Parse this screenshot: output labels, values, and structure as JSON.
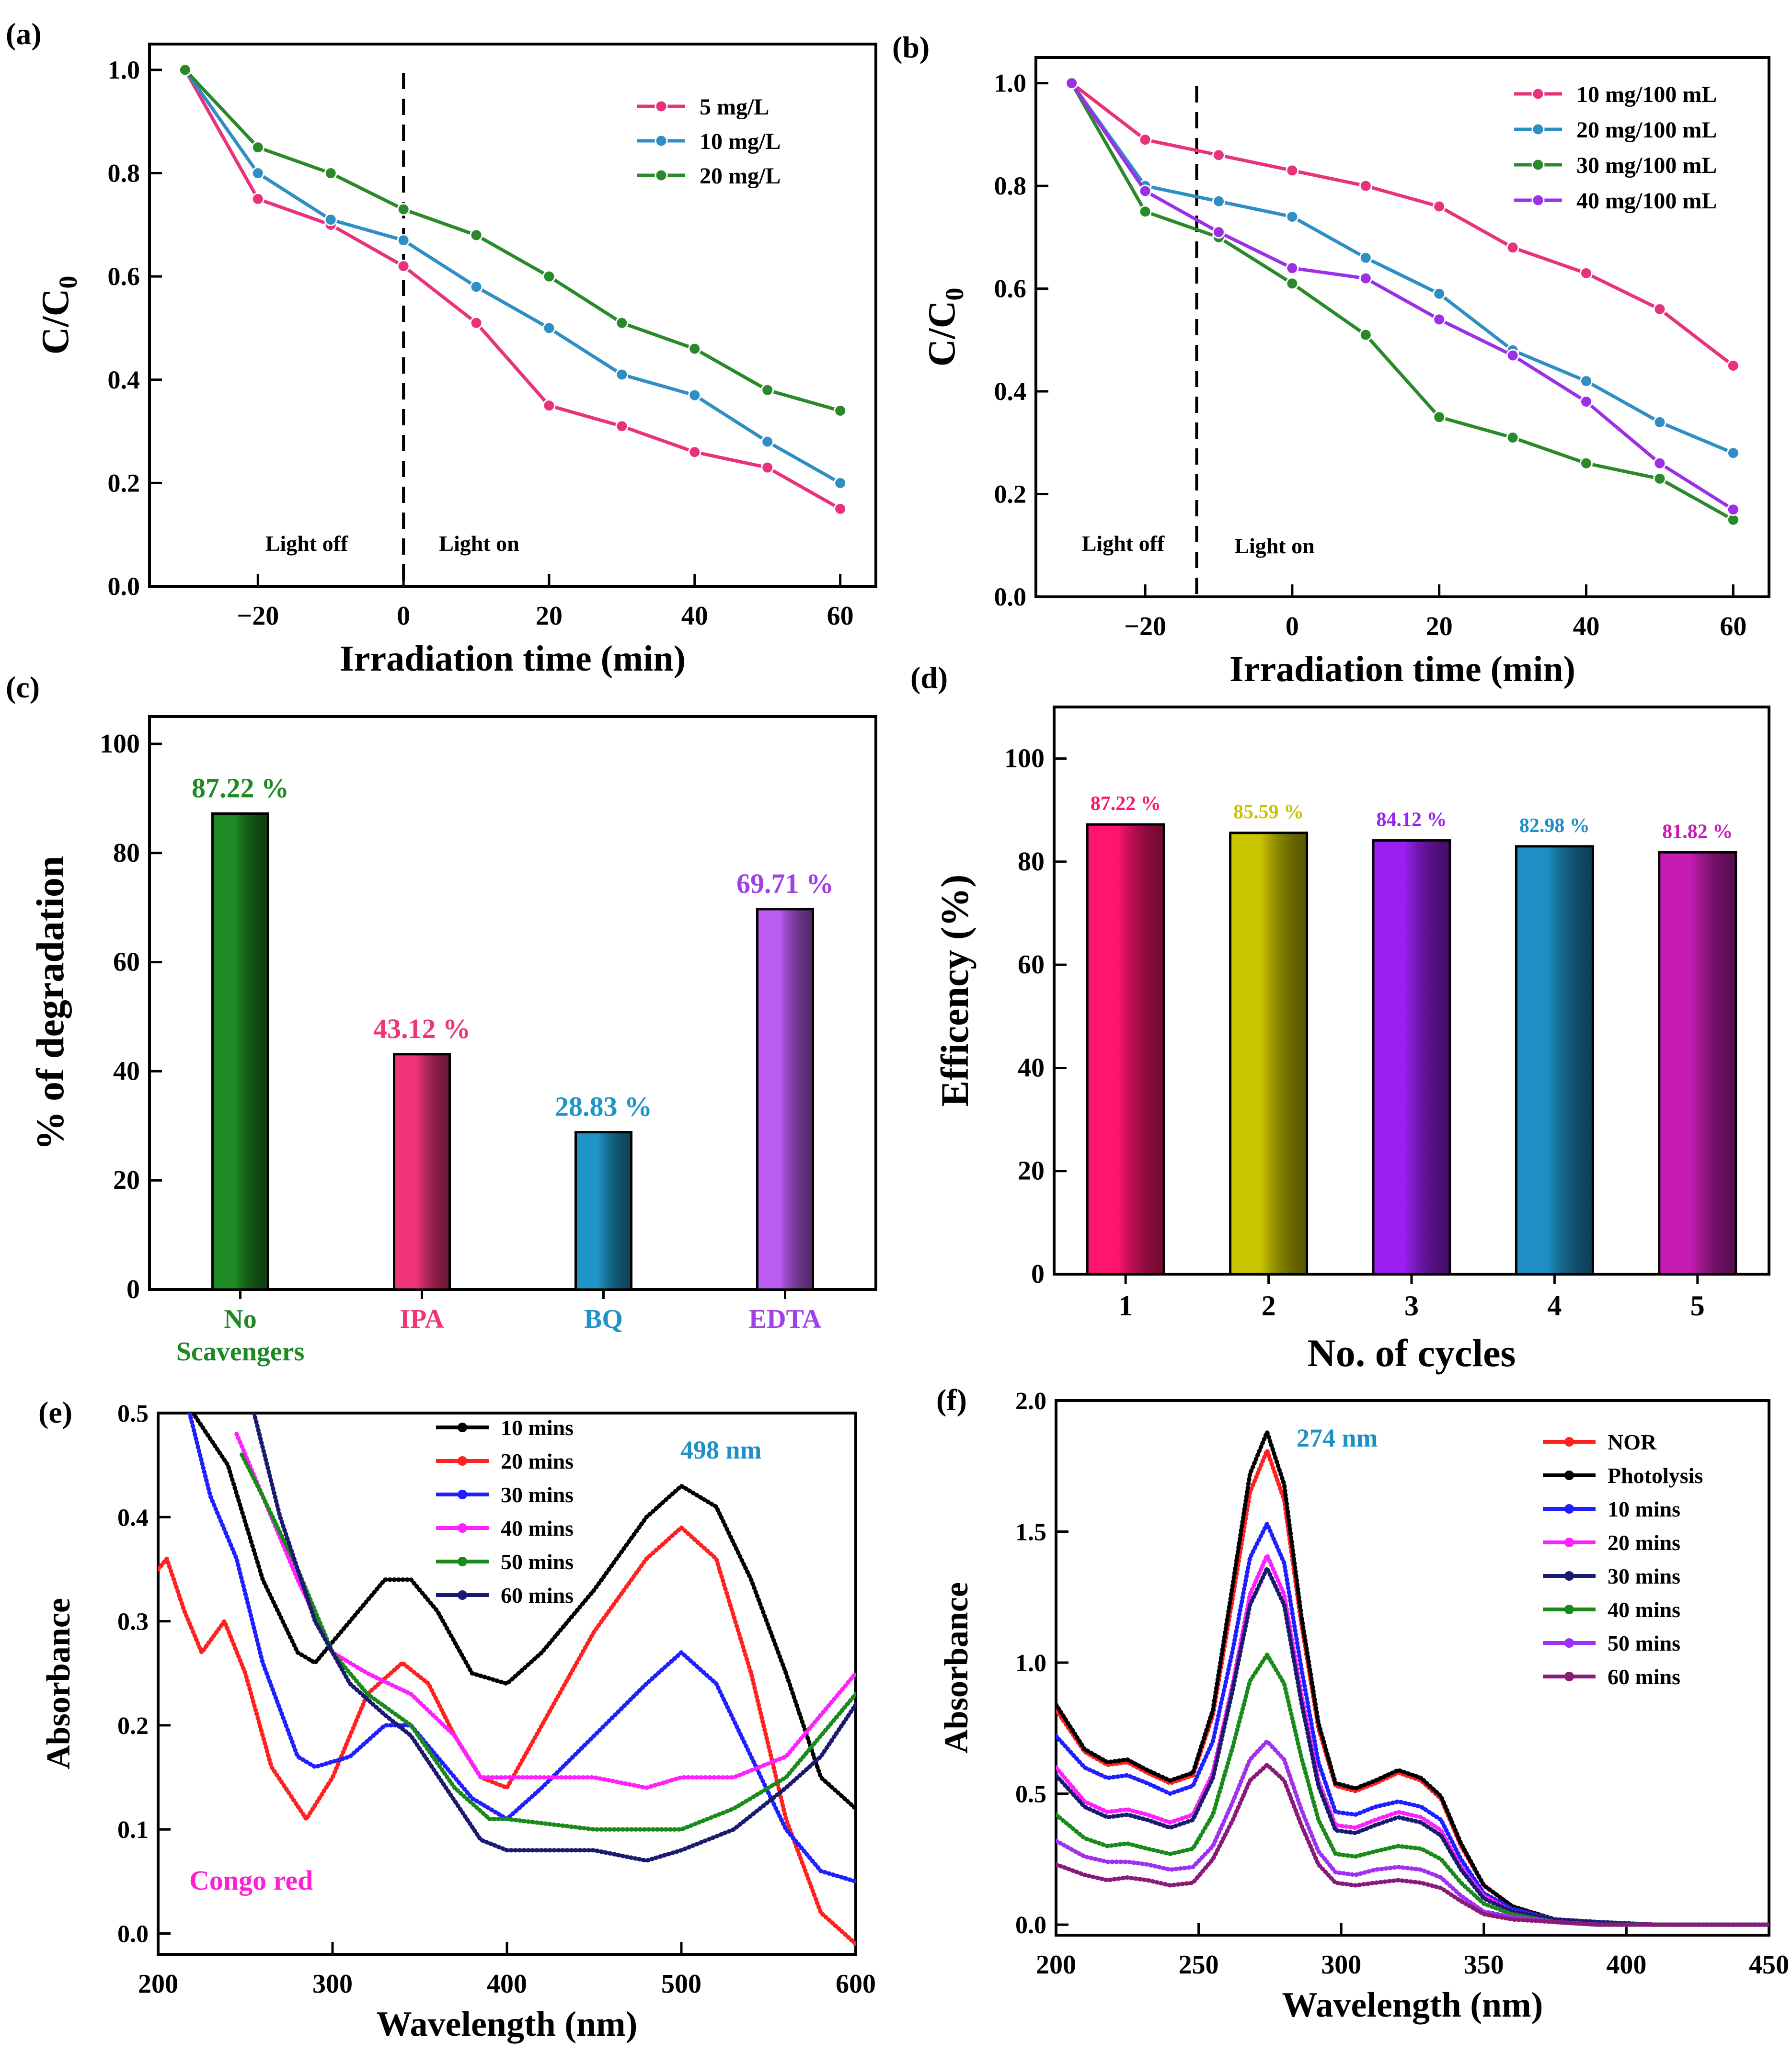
{
  "chart_data": [
    {
      "panel_label": "(a)",
      "type": "line",
      "xlabel": "Irradiation time (min)",
      "ylabel_main": "C/C",
      "ylabel_sub": "0",
      "xlim": [
        -32,
        62
      ],
      "ylim": [
        0,
        1.05
      ],
      "xticks": [
        -20,
        0,
        20,
        40,
        60
      ],
      "xtick_labels": [
        "−20",
        "0",
        "20",
        "40",
        "60"
      ],
      "yticks": [
        0,
        0.2,
        0.4,
        0.6,
        0.8,
        1.0
      ],
      "ytick_labels": [
        "0.0",
        "0.2",
        "0.4",
        "0.6",
        "0.8",
        "1.0"
      ],
      "divider_x": 0,
      "region_labels": {
        "off": "Light off",
        "on": "Light on"
      },
      "x": [
        -30,
        -20,
        -10,
        0,
        10,
        20,
        30,
        40,
        50,
        60
      ],
      "series": [
        {
          "name": "5 mg/L",
          "color": "#e8327c",
          "values": [
            1.0,
            0.75,
            0.7,
            0.62,
            0.51,
            0.35,
            0.31,
            0.26,
            0.23,
            0.15
          ]
        },
        {
          "name": "10 mg/L",
          "color": "#2f8fc4",
          "values": [
            1.0,
            0.8,
            0.71,
            0.67,
            0.58,
            0.5,
            0.41,
            0.37,
            0.28,
            0.2
          ]
        },
        {
          "name": "20 mg/L",
          "color": "#2a8a2a",
          "values": [
            1.0,
            0.85,
            0.8,
            0.73,
            0.68,
            0.6,
            0.51,
            0.46,
            0.38,
            0.34
          ]
        }
      ]
    },
    {
      "panel_label": "(b)",
      "type": "line",
      "xlabel": "Irradiation time (min)",
      "ylabel_main": "C/C",
      "ylabel_sub": "0",
      "xlim": [
        -32,
        62
      ],
      "ylim": [
        0,
        1.05
      ],
      "xticks": [
        -20,
        0,
        20,
        40,
        60
      ],
      "xtick_labels": [
        "−20",
        "0",
        "20",
        "40",
        "60"
      ],
      "yticks": [
        0,
        0.2,
        0.4,
        0.6,
        0.8,
        1.0
      ],
      "ytick_labels": [
        "0.0",
        "0.2",
        "0.4",
        "0.6",
        "0.8",
        "1.0"
      ],
      "divider_x": -13,
      "region_labels": {
        "off": "Light off",
        "on": "Light on"
      },
      "x": [
        -30,
        -20,
        -10,
        0,
        10,
        20,
        30,
        40,
        50,
        60
      ],
      "series": [
        {
          "name": "10 mg/100 mL",
          "color": "#e8327c",
          "values": [
            1.0,
            0.89,
            0.86,
            0.83,
            0.8,
            0.76,
            0.68,
            0.63,
            0.56,
            0.45
          ]
        },
        {
          "name": "20 mg/100 mL",
          "color": "#2f8fc4",
          "values": [
            1.0,
            0.8,
            0.77,
            0.74,
            0.66,
            0.59,
            0.48,
            0.42,
            0.34,
            0.28
          ]
        },
        {
          "name": "30 mg/100 mL",
          "color": "#2a8a2a",
          "values": [
            1.0,
            0.75,
            0.7,
            0.61,
            0.51,
            0.35,
            0.31,
            0.26,
            0.23,
            0.15
          ]
        },
        {
          "name": "40 mg/100 mL",
          "color": "#9b30e6",
          "values": [
            1.0,
            0.79,
            0.71,
            0.64,
            0.62,
            0.54,
            0.47,
            0.38,
            0.26,
            0.17
          ]
        }
      ]
    },
    {
      "panel_label": "(c)",
      "type": "bar",
      "ylabel": "% of degradation",
      "ylim": [
        0,
        105
      ],
      "yticks": [
        0,
        20,
        40,
        60,
        80,
        100
      ],
      "ytick_labels": [
        "0",
        "20",
        "40",
        "60",
        "80",
        "100"
      ],
      "categories": [
        "No Scavengers",
        "IPA",
        "BQ",
        "EDTA"
      ],
      "category_lines": [
        [
          "No",
          "Scavengers"
        ],
        [
          "IPA"
        ],
        [
          "BQ"
        ],
        [
          "EDTA"
        ]
      ],
      "values": [
        87.22,
        43.12,
        28.83,
        69.71
      ],
      "value_labels": [
        "87.22 %",
        "43.12 %",
        "28.83 %",
        "69.71 %"
      ],
      "colors": [
        "#1e8a24",
        "#f0347a",
        "#1f95c7",
        "#bb5cf0"
      ],
      "label_colors": [
        "#1e8a24",
        "#f0347a",
        "#1f95c7",
        "#a040e8"
      ]
    },
    {
      "panel_label": "(d)",
      "type": "bar",
      "xlabel": "No. of cycles",
      "ylabel": "Efficency (%)",
      "ylim": [
        0,
        110
      ],
      "yticks": [
        0,
        20,
        40,
        60,
        80,
        100
      ],
      "ytick_labels": [
        "0",
        "20",
        "40",
        "60",
        "80",
        "100"
      ],
      "categories": [
        "1",
        "2",
        "3",
        "4",
        "5"
      ],
      "values": [
        87.22,
        85.59,
        84.12,
        82.98,
        81.82
      ],
      "value_labels": [
        "87.22 %",
        "85.59 %",
        "84.12 %",
        "82.98 %",
        "81.82 %"
      ],
      "colors": [
        "#ff1470",
        "#c9c400",
        "#9b1ff0",
        "#1f8fc6",
        "#c71cb4"
      ],
      "label_colors": [
        "#ff1470",
        "#c9c400",
        "#9b1ff0",
        "#1f8fc6",
        "#c71cb4"
      ]
    },
    {
      "panel_label": "(e)",
      "type": "line",
      "xlabel": "Wavelength (nm)",
      "ylabel": "Absorbance",
      "xlim": [
        200,
        600
      ],
      "ylim": [
        -0.02,
        0.5
      ],
      "xticks": [
        200,
        300,
        400,
        500,
        600
      ],
      "xtick_labels": [
        "200",
        "300",
        "400",
        "500",
        "600"
      ],
      "yticks": [
        0,
        0.1,
        0.2,
        0.3,
        0.4,
        0.5
      ],
      "ytick_labels": [
        "0.0",
        "0.1",
        "0.2",
        "0.3",
        "0.4",
        "0.5"
      ],
      "annotation": "498 nm",
      "inset_label": "Congo red",
      "series": [
        {
          "name": "10 mins",
          "color": "#000000",
          "x": [
            220,
            240,
            260,
            280,
            290,
            310,
            330,
            345,
            360,
            380,
            400,
            420,
            450,
            480,
            500,
            520,
            540,
            560,
            580,
            600
          ],
          "values": [
            0.5,
            0.45,
            0.34,
            0.27,
            0.26,
            0.3,
            0.34,
            0.34,
            0.31,
            0.25,
            0.24,
            0.27,
            0.33,
            0.4,
            0.43,
            0.41,
            0.34,
            0.25,
            0.15,
            0.12
          ]
        },
        {
          "name": "20 mins",
          "color": "#ff2020",
          "x": [
            200,
            205,
            215,
            225,
            238,
            250,
            265,
            285,
            300,
            320,
            340,
            355,
            370,
            385,
            400,
            420,
            450,
            480,
            500,
            520,
            540,
            560,
            580,
            600
          ],
          "values": [
            0.35,
            0.36,
            0.31,
            0.27,
            0.3,
            0.25,
            0.16,
            0.11,
            0.15,
            0.23,
            0.26,
            0.24,
            0.19,
            0.15,
            0.14,
            0.2,
            0.29,
            0.36,
            0.39,
            0.36,
            0.25,
            0.11,
            0.02,
            -0.01
          ]
        },
        {
          "name": "30 mins",
          "color": "#1f1fff",
          "x": [
            218,
            230,
            245,
            260,
            280,
            290,
            310,
            330,
            345,
            360,
            380,
            400,
            420,
            450,
            480,
            500,
            520,
            540,
            560,
            580,
            600
          ],
          "values": [
            0.5,
            0.42,
            0.36,
            0.26,
            0.17,
            0.16,
            0.17,
            0.2,
            0.2,
            0.17,
            0.13,
            0.11,
            0.14,
            0.19,
            0.24,
            0.27,
            0.24,
            0.17,
            0.1,
            0.06,
            0.05
          ]
        },
        {
          "name": "40 mins",
          "color": "#ff20ff",
          "x": [
            245,
            260,
            280,
            300,
            320,
            345,
            370,
            385,
            400,
            450,
            480,
            500,
            530,
            560,
            580,
            600
          ],
          "values": [
            0.48,
            0.42,
            0.34,
            0.27,
            0.25,
            0.23,
            0.19,
            0.15,
            0.15,
            0.15,
            0.14,
            0.15,
            0.15,
            0.17,
            0.21,
            0.25
          ]
        },
        {
          "name": "50 mins",
          "color": "#1a8a1a",
          "x": [
            248,
            260,
            280,
            300,
            320,
            345,
            370,
            390,
            400,
            450,
            480,
            500,
            530,
            560,
            580,
            600
          ],
          "values": [
            0.46,
            0.42,
            0.35,
            0.27,
            0.23,
            0.2,
            0.14,
            0.11,
            0.11,
            0.1,
            0.1,
            0.1,
            0.12,
            0.15,
            0.19,
            0.23
          ]
        },
        {
          "name": "60 mins",
          "color": "#1a1a70",
          "x": [
            255,
            270,
            290,
            310,
            330,
            345,
            365,
            385,
            400,
            450,
            480,
            500,
            530,
            560,
            580,
            600
          ],
          "values": [
            0.5,
            0.4,
            0.3,
            0.24,
            0.21,
            0.19,
            0.14,
            0.09,
            0.08,
            0.08,
            0.07,
            0.08,
            0.1,
            0.14,
            0.17,
            0.22
          ]
        }
      ]
    },
    {
      "panel_label": "(f)",
      "type": "line",
      "xlabel": "Wavelength (nm)",
      "ylabel": "Absorbance",
      "xlim": [
        200,
        450
      ],
      "ylim": [
        -0.04,
        2.0
      ],
      "xticks": [
        200,
        250,
        300,
        350,
        400,
        450
      ],
      "xtick_labels": [
        "200",
        "250",
        "300",
        "350",
        "400",
        "450"
      ],
      "yticks": [
        0,
        0.5,
        1.0,
        1.5,
        2.0
      ],
      "ytick_labels": [
        "0.0",
        "0.5",
        "1.0",
        "1.5",
        "2.0"
      ],
      "annotation": "274 nm",
      "x": [
        200,
        210,
        218,
        225,
        232,
        240,
        248,
        255,
        262,
        268,
        274,
        280,
        286,
        292,
        298,
        305,
        312,
        320,
        328,
        335,
        342,
        350,
        360,
        375,
        390,
        410,
        430,
        450
      ],
      "series": [
        {
          "name": "NOR",
          "color": "#ff2020",
          "values": [
            0.82,
            0.66,
            0.61,
            0.62,
            0.58,
            0.54,
            0.57,
            0.8,
            1.25,
            1.65,
            1.81,
            1.62,
            1.15,
            0.75,
            0.53,
            0.51,
            0.54,
            0.58,
            0.55,
            0.48,
            0.3,
            0.15,
            0.07,
            0.02,
            0.01,
            0.0,
            0.0,
            0.0
          ]
        },
        {
          "name": "Photolysis",
          "color": "#000000",
          "values": [
            0.84,
            0.67,
            0.62,
            0.63,
            0.59,
            0.55,
            0.58,
            0.82,
            1.3,
            1.72,
            1.88,
            1.68,
            1.18,
            0.77,
            0.54,
            0.52,
            0.55,
            0.59,
            0.56,
            0.49,
            0.31,
            0.15,
            0.07,
            0.02,
            0.01,
            0.0,
            0.0,
            0.0
          ]
        },
        {
          "name": "10 mins",
          "color": "#1f1fff",
          "values": [
            0.72,
            0.6,
            0.56,
            0.57,
            0.54,
            0.5,
            0.53,
            0.7,
            1.05,
            1.4,
            1.53,
            1.38,
            0.98,
            0.62,
            0.43,
            0.42,
            0.45,
            0.47,
            0.45,
            0.4,
            0.25,
            0.12,
            0.06,
            0.02,
            0.01,
            0.0,
            0.0,
            0.0
          ]
        },
        {
          "name": "20 mins",
          "color": "#ff20ff",
          "values": [
            0.6,
            0.47,
            0.43,
            0.44,
            0.42,
            0.39,
            0.42,
            0.58,
            0.92,
            1.26,
            1.41,
            1.26,
            0.88,
            0.55,
            0.38,
            0.37,
            0.4,
            0.43,
            0.41,
            0.36,
            0.22,
            0.11,
            0.05,
            0.02,
            0.01,
            0.0,
            0.0,
            0.0
          ]
        },
        {
          "name": "30 mins",
          "color": "#1a1a70",
          "values": [
            0.57,
            0.45,
            0.41,
            0.42,
            0.4,
            0.37,
            0.4,
            0.56,
            0.9,
            1.22,
            1.36,
            1.22,
            0.85,
            0.53,
            0.36,
            0.35,
            0.38,
            0.41,
            0.39,
            0.34,
            0.21,
            0.1,
            0.05,
            0.02,
            0.01,
            0.0,
            0.0,
            0.0
          ]
        },
        {
          "name": "40 mins",
          "color": "#1a8a1a",
          "values": [
            0.42,
            0.33,
            0.3,
            0.31,
            0.29,
            0.27,
            0.29,
            0.42,
            0.68,
            0.93,
            1.03,
            0.92,
            0.64,
            0.4,
            0.27,
            0.26,
            0.28,
            0.3,
            0.29,
            0.25,
            0.16,
            0.08,
            0.04,
            0.01,
            0.0,
            0.0,
            0.0,
            0.0
          ]
        },
        {
          "name": "50 mins",
          "color": "#a030f0",
          "values": [
            0.32,
            0.26,
            0.24,
            0.24,
            0.23,
            0.21,
            0.22,
            0.3,
            0.47,
            0.63,
            0.7,
            0.63,
            0.44,
            0.28,
            0.2,
            0.19,
            0.21,
            0.22,
            0.21,
            0.18,
            0.11,
            0.05,
            0.03,
            0.01,
            0.0,
            0.0,
            0.0,
            0.0
          ]
        },
        {
          "name": "60 mins",
          "color": "#8a1a7a",
          "values": [
            0.23,
            0.19,
            0.17,
            0.18,
            0.17,
            0.15,
            0.16,
            0.25,
            0.4,
            0.55,
            0.61,
            0.55,
            0.38,
            0.23,
            0.16,
            0.15,
            0.16,
            0.17,
            0.16,
            0.14,
            0.09,
            0.04,
            0.02,
            0.01,
            0.0,
            0.0,
            0.0,
            0.0
          ]
        }
      ]
    }
  ]
}
